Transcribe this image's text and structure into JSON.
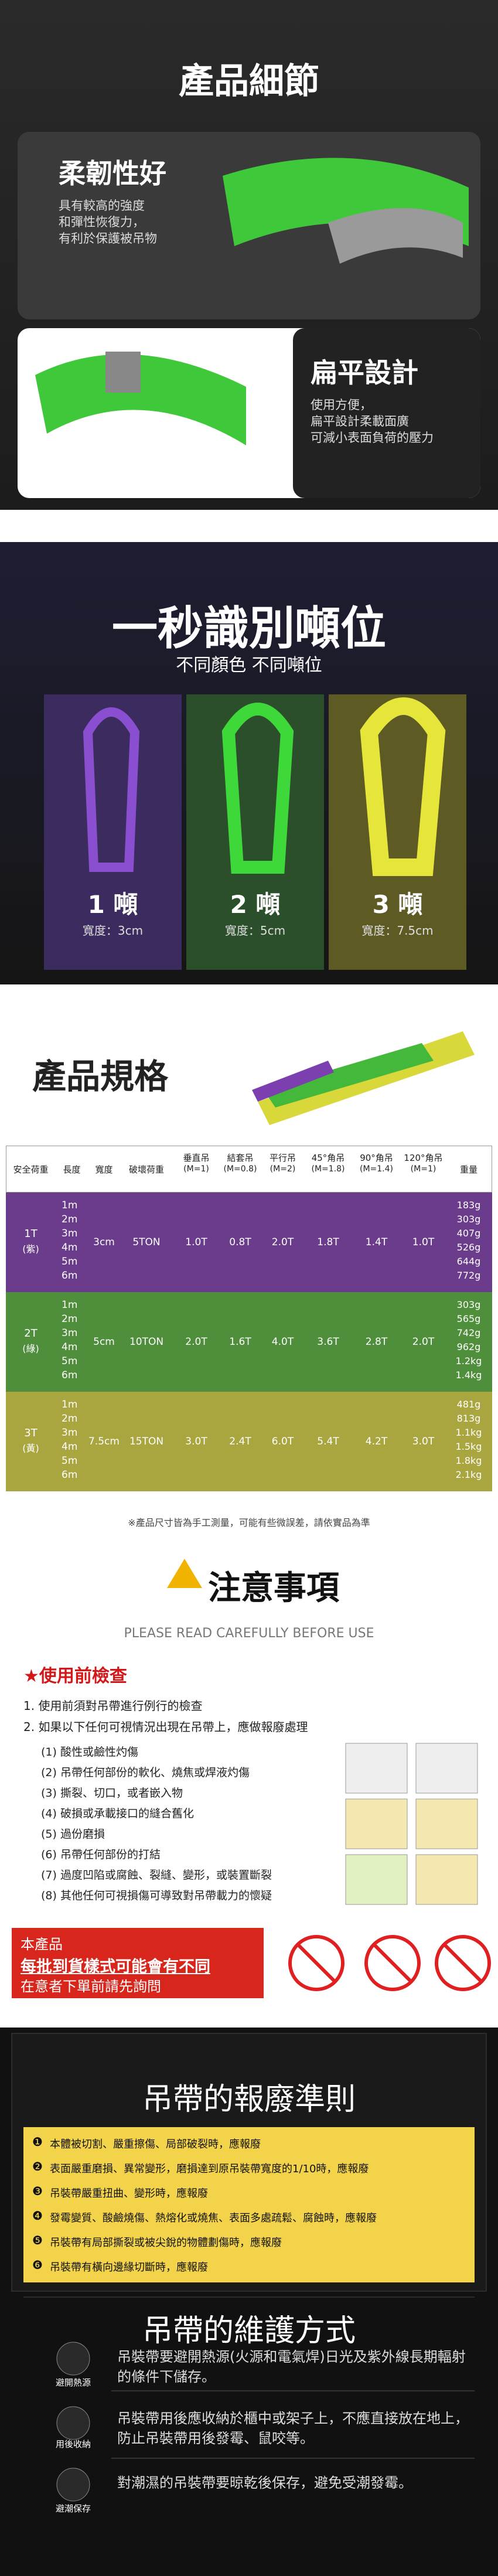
{
  "details": {
    "title": "產品細節",
    "features": [
      {
        "title": "柔韌性好",
        "lines": [
          "具有較高的強度",
          "和彈性恢復力，",
          "有利於保護被吊物"
        ]
      },
      {
        "title": "扁平設計",
        "lines": [
          "使用方便，",
          "扁平設計柔載面廣",
          "可減小表面負荷的壓力"
        ]
      }
    ]
  },
  "tonnage": {
    "title": "一秒識別噸位",
    "subtitle": "不同顏色 不同噸位",
    "items": [
      {
        "label": "1 噸",
        "width": "寬度：3cm"
      },
      {
        "label": "2 噸",
        "width": "寬度：5cm"
      },
      {
        "label": "3 噸",
        "width": "寬度：7.5cm"
      }
    ]
  },
  "spec": {
    "title": "產品規格",
    "header": [
      {
        "name": "安全荷重"
      },
      {
        "name": "長度"
      },
      {
        "name": "寬度"
      },
      {
        "name": "破壞荷重"
      },
      {
        "name": "垂直吊",
        "sub": "(M=1)"
      },
      {
        "name": "結套吊",
        "sub": "(M=0.8)"
      },
      {
        "name": "平行吊",
        "sub": "(M=2)"
      },
      {
        "name": "45°角吊",
        "sub": "(M=1.8)"
      },
      {
        "name": "90°角吊",
        "sub": "(M=1.4)"
      },
      {
        "name": "120°角吊",
        "sub": "(M=1)"
      },
      {
        "name": "重量"
      }
    ],
    "rows": [
      {
        "load": "1T",
        "note": "(紫)",
        "bg": "#6b3c8c",
        "lengths": [
          "1m",
          "2m",
          "3m",
          "4m",
          "5m",
          "6m"
        ],
        "width": "3cm",
        "break": "5TON",
        "loads": [
          "1.0T",
          "0.8T",
          "2.0T",
          "1.8T",
          "1.4T",
          "1.0T"
        ],
        "weights": [
          "183g",
          "303g",
          "407g",
          "526g",
          "644g",
          "772g"
        ]
      },
      {
        "load": "2T",
        "note": "(綠)",
        "bg": "#4f8f3c",
        "lengths": [
          "1m",
          "2m",
          "3m",
          "4m",
          "5m",
          "6m"
        ],
        "width": "5cm",
        "break": "10TON",
        "loads": [
          "2.0T",
          "1.6T",
          "4.0T",
          "3.6T",
          "2.8T",
          "2.0T"
        ],
        "weights": [
          "303g",
          "565g",
          "742g",
          "962g",
          "1.2kg",
          "1.4kg"
        ]
      },
      {
        "load": "3T",
        "note": "(黃)",
        "bg": "#a9a640",
        "lengths": [
          "1m",
          "2m",
          "3m",
          "4m",
          "5m",
          "6m"
        ],
        "width": "7.5cm",
        "break": "15TON",
        "loads": [
          "3.0T",
          "2.4T",
          "6.0T",
          "5.4T",
          "4.2T",
          "3.0T"
        ],
        "weights": [
          "481g",
          "813g",
          "1.1kg",
          "1.5kg",
          "1.8kg",
          "2.1kg"
        ]
      }
    ],
    "note": "※產品尺寸皆為手工測量，可能有些微誤差，請依實品為準"
  },
  "caution": {
    "title": "注意事項",
    "subtitle": "PLEASE READ CAREFULLY BEFORE USE",
    "heading": "★使用前檢查",
    "items": [
      "1. 使用前須對吊帶進行例行的檢查",
      "2. 如果以下任何可視情況出現在吊帶上，應做報廢處理"
    ],
    "subitems": [
      "(1) 酸性或鹼性灼傷",
      "(2) 吊帶任何部份的軟化、燒焦或焊液灼傷",
      "(3) 撕裂、切口，或者嵌入物",
      "(4) 破損或承載接口的縫合舊化",
      "(5) 過份磨損",
      "(6) 吊帶任何部份的打結",
      "(7) 過度凹陷或腐蝕、裂縫、變形，或裝置斷裂",
      "(8) 其他任何可視損傷可導致對吊帶載力的懷疑"
    ],
    "notice": [
      "本產品",
      "每批到貨樣式可能會有不同",
      "在意者下單前請先詢問"
    ]
  },
  "scrap": {
    "title": "吊帶的報廢準則",
    "items": [
      {
        "num": "❶",
        "text": "本體被切割、嚴重擦傷、局部破裂時，應報廢"
      },
      {
        "num": "❷",
        "text": "表面嚴重磨損、異常變形，磨損達到原吊裝帶寬度的1/10時，應報廢"
      },
      {
        "num": "❸",
        "text": "吊裝帶嚴重扭曲、變形時，應報廢"
      },
      {
        "num": "❹",
        "text": "發霉變質、酸鹼燒傷、熱熔化或燒焦、表面多處疏鬆、腐蝕時，應報廢"
      },
      {
        "num": "❺",
        "text": "吊裝帶有局部撕裂或被尖銳的物體劃傷時，應報廢"
      },
      {
        "num": "❻",
        "text": "吊裝帶有橫向邊緣切斷時，應報廢"
      }
    ]
  },
  "maintenance": {
    "title": "吊帶的維護方式",
    "items": [
      {
        "icon": "避開熱源",
        "text": "吊裝帶要避開熱源(火源和電氣焊)日光及紫外線長期輻射的條件下儲存。"
      },
      {
        "icon": "用後收納",
        "text": "吊裝帶用後應收納於櫃中或架子上，不應直接放在地上，防止吊裝帶用後發霉、鼠咬等。"
      },
      {
        "icon": "避潮保存",
        "text": "對潮濕的吊裝帶要晾乾後保存，避免受潮發霉。"
      }
    ]
  }
}
